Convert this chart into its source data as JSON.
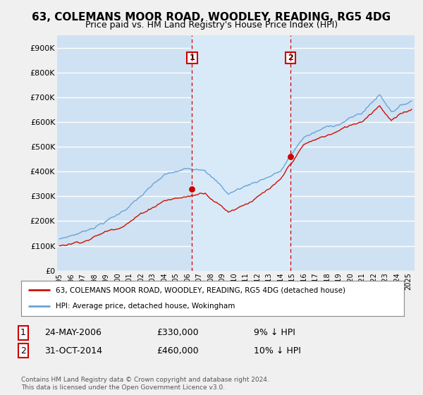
{
  "title": "63, COLEMANS MOOR ROAD, WOODLEY, READING, RG5 4DG",
  "subtitle": "Price paid vs. HM Land Registry's House Price Index (HPI)",
  "bg_color": "#cfe2f3",
  "shaded_region_color": "#d8eaf8",
  "fig_bg_color": "#f0f0f0",
  "grid_color": "#ffffff",
  "yticks": [
    0,
    100000,
    200000,
    300000,
    400000,
    500000,
    600000,
    700000,
    800000,
    900000
  ],
  "ytick_labels": [
    "£0",
    "£100K",
    "£200K",
    "£300K",
    "£400K",
    "£500K",
    "£600K",
    "£700K",
    "£800K",
    "£900K"
  ],
  "ylim": [
    0,
    950000
  ],
  "xmin": 1994.8,
  "xmax": 2025.5,
  "sale1_date": 2006.39,
  "sale1_price": 330000,
  "sale2_date": 2014.83,
  "sale2_price": 460000,
  "vline_color": "#cc0000",
  "sale_marker_color": "#cc0000",
  "hpi_line_color": "#6ba3d6",
  "price_line_color": "#cc1100",
  "legend_label_price": "63, COLEMANS MOOR ROAD, WOODLEY, READING, RG5 4DG (detached house)",
  "legend_label_hpi": "HPI: Average price, detached house, Wokingham",
  "table_row1_num": "1",
  "table_row1_date": "24-MAY-2006",
  "table_row1_price": "£330,000",
  "table_row1_hpi": "9% ↓ HPI",
  "table_row2_num": "2",
  "table_row2_date": "31-OCT-2014",
  "table_row2_price": "£460,000",
  "table_row2_hpi": "10% ↓ HPI",
  "footer": "Contains HM Land Registry data © Crown copyright and database right 2024.\nThis data is licensed under the Open Government Licence v3.0."
}
